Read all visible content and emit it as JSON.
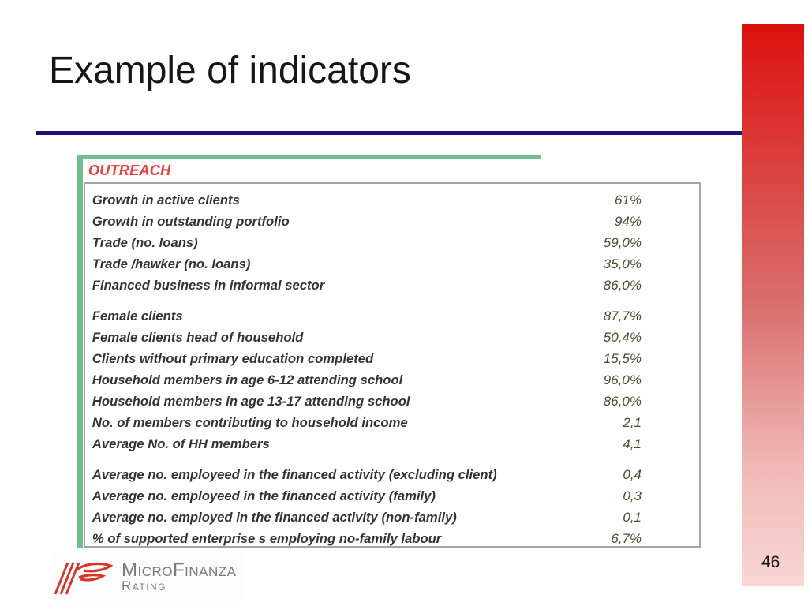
{
  "slide": {
    "title": "Example of indicators",
    "page_number": "46"
  },
  "table": {
    "header": "OUTREACH",
    "groups": [
      {
        "rows": [
          {
            "label": "Growth in active clients",
            "value": "61%"
          },
          {
            "label": "Growth in outstanding portfolio",
            "value": "94%"
          },
          {
            "label": "Trade (no. loans)",
            "value": "59,0%"
          },
          {
            "label": "Trade /hawker (no. loans)",
            "value": "35,0%"
          },
          {
            "label": "Financed business in informal sector",
            "value": "86,0%"
          }
        ]
      },
      {
        "rows": [
          {
            "label": "Female clients",
            "value": "87,7%"
          },
          {
            "label": "Female clients head of household",
            "value": "50,4%"
          },
          {
            "label": "Clients without primary education completed",
            "value": "15,5%"
          },
          {
            "label": "Household members in age 6-12 attending school",
            "value": "96,0%"
          },
          {
            "label": "Household members in age 13-17 attending school",
            "value": "86,0%"
          },
          {
            "label": "No. of members contributing to household income",
            "value": "2,1"
          },
          {
            "label": "Average No. of HH members",
            "value": "4,1"
          }
        ]
      },
      {
        "rows": [
          {
            "label": "Average no. employeed in the financed activity (excluding client)",
            "value": "0,4"
          },
          {
            "label": "Average no. employeed in the financed activity (family)",
            "value": "0,3"
          },
          {
            "label": "Average no. employed in the financed activity (non-family)",
            "value": "0,1"
          },
          {
            "label": "% of supported enterprise s employing no-family labour",
            "value": "6,7%"
          }
        ]
      }
    ]
  },
  "logo": {
    "name": "MicroFinanza",
    "subtitle": "Rating"
  },
  "colors": {
    "title_rule_navy": "#1c1173",
    "table_accent_green": "#6fbf8f",
    "outreach_header_red": "#e8403c",
    "table_border_gray": "#a5a5a5",
    "value_text_olive": "#4b4b2e",
    "side_bar_top_red": "#dc100e",
    "side_bar_bottom_pink": "#f8d7d5",
    "logo_red": "#d2372c",
    "logo_gray": "#7b7b7b"
  }
}
